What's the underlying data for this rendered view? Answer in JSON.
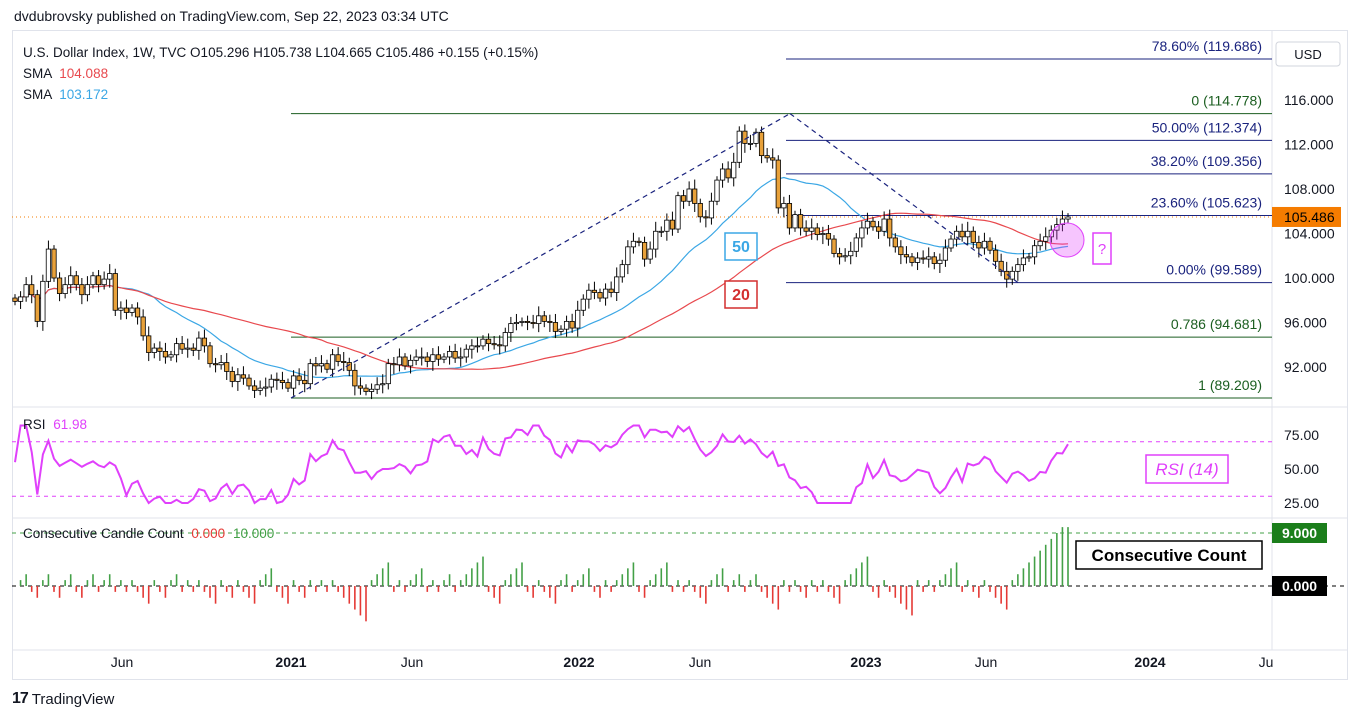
{
  "publisher": "dvdubrovsky published on TradingView.com, Sep 22, 2023 03:34 UTC",
  "brand": "TradingView",
  "brand_mark": "17",
  "legend": {
    "symbol_line": "U.S. Dollar Index, 1W, TVC  O105.296  H105.738  L104.665  C105.486  +0.155 (+0.15%)",
    "sma1_label": "SMA",
    "sma1_value": "104.088",
    "sma2_label": "SMA",
    "sma2_value": "103.172",
    "rsi_label": "RSI",
    "rsi_value": "61.98",
    "ccc_label": "Consecutive Candle Count",
    "ccc_v1": "0.000",
    "ccc_v2": "10.000"
  },
  "colors": {
    "up": "#ffffff",
    "down": "#e8a13a",
    "sma20": "#e8494e",
    "sma50": "#3ba7e5",
    "fib_blue": "#1a237e",
    "fib_green": "#1b5e20",
    "rsi": "#e040fb",
    "hist_up": "#43a047",
    "hist_down": "#e53935",
    "price_tag": "#f57c00",
    "count_tag": "#1b7e1b"
  },
  "chart_data": {
    "type": "candlestick",
    "currency": "USD",
    "y_ticks": [
      "116.000",
      "112.000",
      "108.000",
      "104.000",
      "100.000",
      "96.000",
      "92.000"
    ],
    "y_tick_values": [
      116,
      112,
      108,
      104,
      100,
      96,
      92
    ],
    "x_ticks": [
      "Jun",
      "2021",
      "Jun",
      "2022",
      "Jun",
      "2023",
      "Jun",
      "2024",
      "Ju"
    ],
    "last_price": "105.486",
    "fib_levels": [
      {
        "label": "78.60% (119.686)",
        "value": 119.686,
        "color": "blue"
      },
      {
        "label": "0 (114.778)",
        "value": 114.778,
        "color": "green"
      },
      {
        "label": "50.00% (112.374)",
        "value": 112.374,
        "color": "blue"
      },
      {
        "label": "38.20% (109.356)",
        "value": 109.356,
        "color": "blue"
      },
      {
        "label": "23.60% (105.623)",
        "value": 105.623,
        "color": "blue"
      },
      {
        "label": "0.00% (99.589)",
        "value": 99.589,
        "color": "blue"
      },
      {
        "label": "0.786 (94.681)",
        "value": 94.681,
        "color": "green"
      },
      {
        "label": "1 (89.209)",
        "value": 89.209,
        "color": "green"
      }
    ],
    "annotations": {
      "sma50_box": "50",
      "sma20_box": "20",
      "question_box": "?",
      "rsi_box": "RSI (14)",
      "count_box": "Consecutive Count"
    },
    "weekly_close": [
      97.9,
      98.3,
      99.4,
      98.5,
      96.1,
      99.7,
      102.6,
      100.0,
      98.6,
      99.4,
      100.2,
      99.4,
      98.5,
      99.4,
      100.2,
      99.4,
      99.9,
      100.4,
      97.1,
      97.3,
      96.9,
      97.3,
      96.5,
      94.8,
      93.3,
      93.7,
      93.4,
      92.9,
      93.1,
      94.1,
      93.6,
      93.7,
      93.5,
      94.6,
      93.9,
      92.3,
      92.2,
      92.4,
      91.6,
      90.7,
      91.3,
      91.0,
      90.3,
      89.9,
      90.1,
      90.2,
      90.9,
      90.8,
      90.6,
      90.1,
      91.2,
      90.8,
      90.5,
      92.3,
      92.1,
      92.3,
      91.8,
      93.1,
      92.5,
      92.4,
      91.7,
      90.3,
      90.1,
      89.8,
      90.0,
      90.4,
      90.5,
      92.3,
      92.2,
      92.9,
      92.1,
      92.6,
      92.9,
      92.9,
      92.5,
      93.1,
      92.7,
      92.9,
      93.4,
      92.8,
      92.9,
      93.6,
      93.9,
      93.9,
      94.5,
      94.1,
      94.0,
      93.9,
      95.1,
      95.9,
      96.0,
      96.1,
      96.0,
      95.9,
      96.6,
      96.1,
      96.0,
      95.2,
      95.4,
      96.1,
      95.5,
      97.1,
      98.1,
      98.9,
      98.7,
      98.2,
      99.0,
      98.7,
      100.1,
      101.2,
      102.8,
      103.3,
      103.2,
      101.7,
      102.6,
      104.2,
      104.2,
      105.2,
      104.4,
      107.4,
      106.9,
      108.0,
      106.7,
      105.5,
      105.4,
      106.9,
      108.8,
      109.8,
      109.0,
      110.4,
      113.2,
      112.1,
      112.1,
      113.1,
      111.0,
      110.8,
      110.6,
      106.3,
      106.7,
      104.5,
      105.7,
      104.5,
      104.2,
      104.5,
      103.9,
      104.0,
      103.5,
      102.2,
      101.9,
      102.0,
      102.4,
      103.6,
      104.5,
      105.1,
      104.6,
      104.2,
      105.3,
      103.6,
      102.8,
      102.1,
      101.9,
      101.4,
      101.8,
      101.7,
      101.9,
      101.3,
      101.6,
      102.7,
      103.5,
      104.2,
      103.7,
      104.2,
      103.2,
      102.7,
      103.3,
      102.5,
      101.5,
      100.6,
      99.9,
      100.6,
      101.2,
      101.8,
      101.9,
      102.9,
      103.3,
      103.7,
      104.3,
      104.8,
      105.3,
      105.486
    ],
    "rsi_ticks": [
      "75.00",
      "50.00",
      "25.00"
    ],
    "count_tags": [
      "9.000",
      "0.000"
    ]
  }
}
